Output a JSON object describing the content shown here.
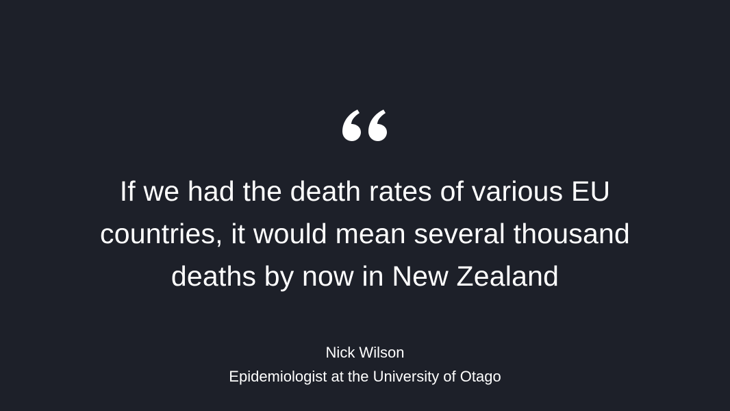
{
  "quote": {
    "text": "If we had the death rates of various EU countries, it would mean several thousand deaths by now in New Zealand",
    "icon": "quote-open-icon"
  },
  "attribution": {
    "name": "Nick Wilson",
    "role": "Epidemiologist at the University of Otago"
  },
  "colors": {
    "background": "#1d2029",
    "text": "#ffffff"
  }
}
